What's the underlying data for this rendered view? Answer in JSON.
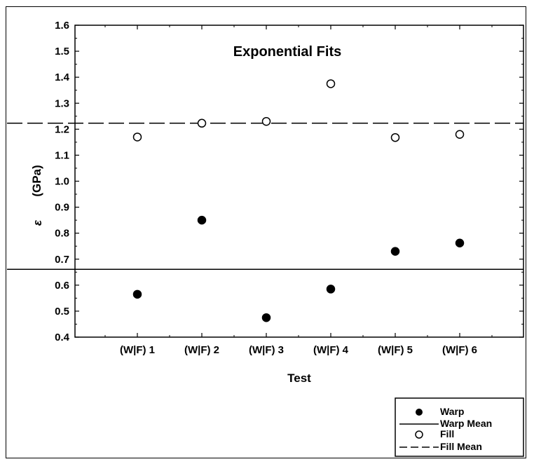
{
  "chart_data": {
    "type": "scatter",
    "title": "Exponential Fits",
    "xlabel": "Test",
    "ylabel_symbol": "ε",
    "ylabel_unit": "(GPa)",
    "categories": [
      "(W|F) 1",
      "(W|F) 2",
      "(W|F) 3",
      "(W|F) 4",
      "(W|F) 5",
      "(W|F) 6"
    ],
    "ylim": [
      0.4,
      1.6
    ],
    "yticks": [
      "0.4",
      "0.5",
      "0.6",
      "0.7",
      "0.8",
      "0.9",
      "1.0",
      "1.1",
      "1.2",
      "1.3",
      "1.4",
      "1.5",
      "1.6"
    ],
    "grid": false,
    "legend_position": "bottom-right",
    "series": [
      {
        "name": "Warp",
        "marker": "filled-circle",
        "values": [
          0.565,
          0.85,
          0.475,
          0.585,
          0.73,
          0.762
        ]
      },
      {
        "name": "Fill",
        "marker": "open-circle",
        "values": [
          1.17,
          1.223,
          1.23,
          1.375,
          1.168,
          1.18
        ]
      }
    ],
    "reference_lines": [
      {
        "name": "Warp Mean",
        "value": 0.661,
        "style": "solid"
      },
      {
        "name": "Fill Mean",
        "value": 1.223,
        "style": "dashed"
      }
    ]
  }
}
